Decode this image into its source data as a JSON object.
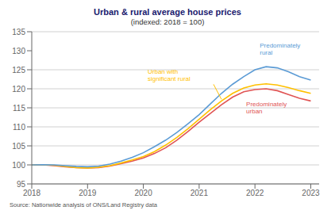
{
  "chart_data": {
    "type": "line",
    "title": "Urban & rural average house prices",
    "subtitle": "(indexed: 2018 = 100)",
    "annotations": [
      "Source: Nationwide analysis of ONS/Land Registry data"
    ],
    "x": [
      2018.0,
      2018.2,
      2018.4,
      2018.6,
      2018.8,
      2019.0,
      2019.2,
      2019.4,
      2019.6,
      2019.8,
      2020.0,
      2020.2,
      2020.4,
      2020.6,
      2020.8,
      2021.0,
      2021.2,
      2021.4,
      2021.6,
      2021.8,
      2022.0,
      2022.2,
      2022.4,
      2022.6,
      2022.8,
      2023.0
    ],
    "series": [
      {
        "name": "Predominately\nurban",
        "color": "#e05454",
        "values": [
          100.0,
          100.0,
          99.8,
          99.5,
          99.3,
          99.2,
          99.3,
          99.7,
          100.3,
          101.0,
          101.8,
          103.0,
          104.5,
          106.5,
          108.8,
          111.2,
          113.5,
          115.8,
          117.8,
          119.2,
          119.8,
          120.0,
          119.5,
          118.5,
          117.5,
          116.8
        ]
      },
      {
        "name": "Urban with\nsignificant rural",
        "color": "#ffc000",
        "values": [
          100.0,
          100.0,
          99.9,
          99.6,
          99.3,
          99.2,
          99.4,
          99.8,
          100.5,
          101.3,
          102.2,
          103.5,
          105.2,
          107.2,
          109.5,
          112.0,
          114.5,
          116.8,
          118.8,
          120.2,
          121.0,
          121.3,
          121.0,
          120.3,
          119.5,
          118.8
        ]
      },
      {
        "name": "Predominately\nrural",
        "color": "#5b9bd5",
        "values": [
          100.0,
          100.05,
          100.0,
          99.8,
          99.6,
          99.5,
          99.7,
          100.2,
          101.0,
          102.0,
          103.2,
          104.8,
          106.5,
          108.5,
          110.8,
          113.2,
          116.0,
          118.8,
          121.2,
          123.2,
          125.0,
          125.8,
          125.5,
          124.5,
          123.2,
          122.3
        ]
      }
    ],
    "xlim": [
      2018,
      2023.15
    ],
    "ylim": [
      95,
      135
    ],
    "xticks": [
      2018,
      2019,
      2020,
      2021,
      2022,
      2023
    ],
    "yticks": [
      95,
      100,
      105,
      110,
      115,
      120,
      125,
      130,
      135
    ],
    "grid": true
  }
}
